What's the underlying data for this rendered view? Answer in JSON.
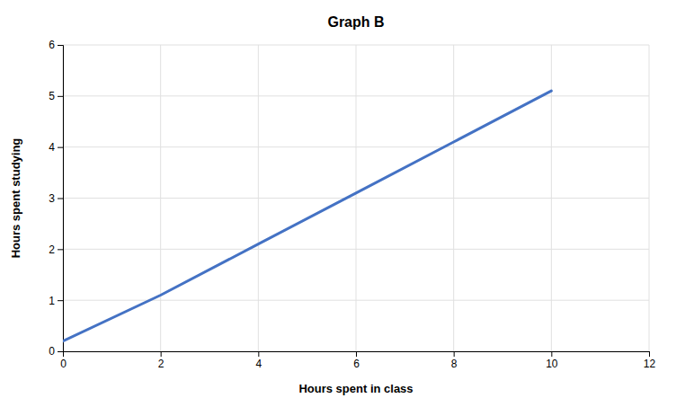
{
  "chart_data": {
    "type": "line",
    "title": "Graph B",
    "xlabel": "Hours spent in class",
    "ylabel": "Hours spent studying",
    "x": [
      0,
      2,
      4,
      6,
      8,
      10
    ],
    "values": [
      0.2,
      1.1,
      2.1,
      3.1,
      4.1,
      5.1
    ],
    "color": "#4472C4",
    "xlim": [
      0,
      12
    ],
    "ylim": [
      0,
      6
    ],
    "xticks": [
      0,
      2,
      4,
      6,
      8,
      10,
      12
    ],
    "yticks": [
      0,
      1,
      2,
      3,
      4,
      5,
      6
    ],
    "grid": true
  }
}
